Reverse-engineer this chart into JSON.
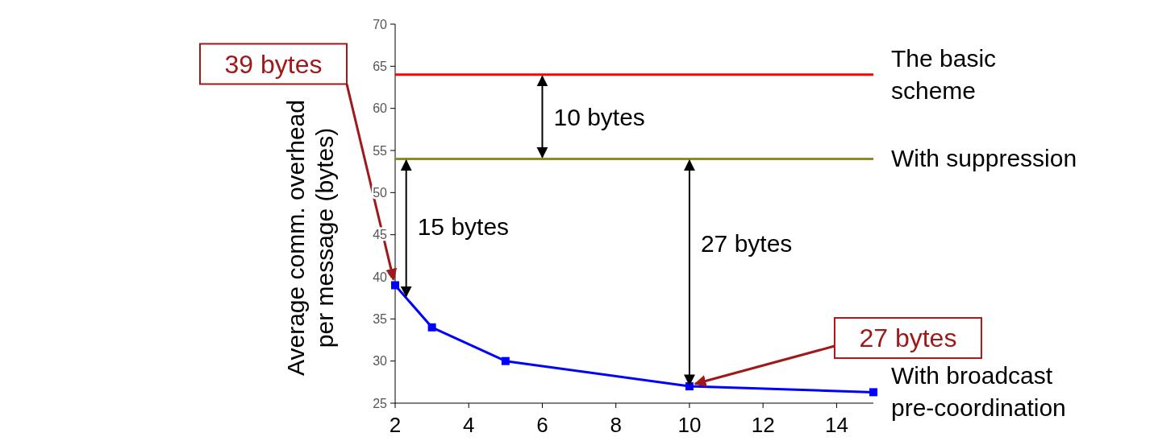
{
  "chart_data": {
    "type": "line",
    "ylabel": "Average comm. overhead\nper message (bytes)",
    "xlim": [
      2,
      15
    ],
    "xticks": [
      2,
      4,
      6,
      8,
      10,
      12,
      14
    ],
    "ylim": [
      25,
      70
    ],
    "yticks": [
      25,
      30,
      35,
      40,
      45,
      50,
      55,
      60,
      65,
      70
    ],
    "grid": false,
    "legend": false,
    "marker": "square",
    "line_style": "solid",
    "series": [
      {
        "name": "The basic scheme",
        "color": "#ff0000",
        "x": [
          2,
          15
        ],
        "values": [
          64,
          64
        ],
        "marker": "none"
      },
      {
        "name": "With suppression",
        "color": "#8c8c28",
        "x": [
          2,
          15
        ],
        "values": [
          54,
          54
        ],
        "marker": "none"
      },
      {
        "name": "With broadcast pre-coordination",
        "color": "#0000ff",
        "x": [
          2,
          3,
          5,
          10,
          15
        ],
        "values": [
          39,
          34,
          30,
          27,
          26.3
        ]
      }
    ],
    "annotations": [
      "10 bytes",
      "15 bytes",
      "27 bytes",
      {
        "text": "39 bytes",
        "x": 2,
        "y": 39
      },
      {
        "text": "27 bytes",
        "x": 10,
        "y": 27
      }
    ]
  }
}
